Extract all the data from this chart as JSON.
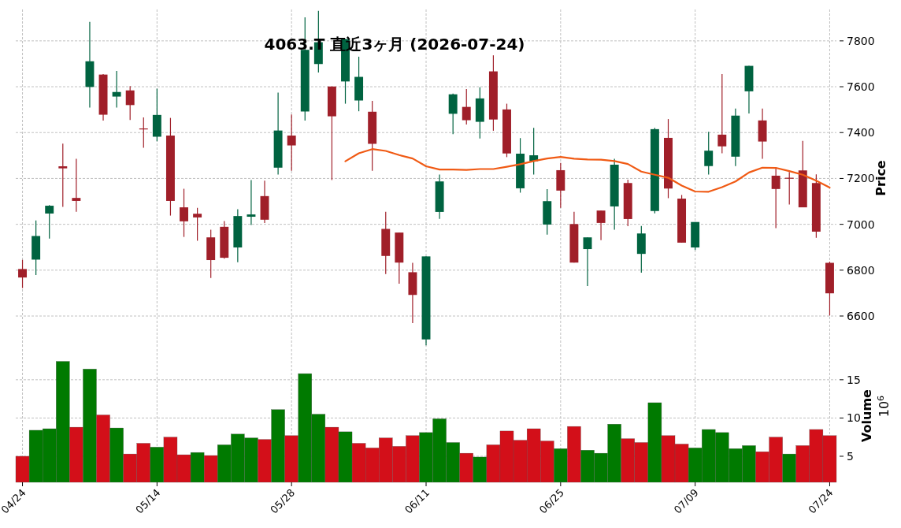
{
  "chart_data": [
    {
      "type": "candlestick",
      "title": "4063.T 直近3ヶ月 (2026-07-24)",
      "ylabel": "Price",
      "categories": [
        null,
        null,
        null,
        null,
        null,
        null,
        null,
        null,
        null,
        null,
        null,
        null,
        null,
        null,
        null,
        null,
        null,
        null,
        null,
        null,
        null,
        null,
        null,
        null,
        null,
        null,
        null,
        null,
        null,
        null,
        null,
        null,
        null,
        null,
        null,
        null,
        null,
        null,
        null,
        null,
        null,
        null,
        null,
        null,
        null,
        null,
        null,
        null,
        null,
        null,
        null,
        null,
        null,
        null,
        null,
        null,
        null,
        null,
        null,
        null,
        null
      ],
      "ohlc": [
        [
          6805,
          6845,
          6722,
          6768
        ],
        [
          6846,
          7017,
          6779,
          6949
        ],
        [
          7047,
          7084,
          6938,
          7081
        ],
        [
          7253,
          7352,
          7076,
          7244
        ],
        [
          7115,
          7286,
          7055,
          7102
        ],
        [
          7599,
          7883,
          7509,
          7711
        ],
        [
          7653,
          7655,
          7452,
          7478
        ],
        [
          7557,
          7669,
          7509,
          7577
        ],
        [
          7584,
          7603,
          7455,
          7520
        ],
        [
          7418,
          7466,
          7334,
          7416
        ],
        [
          7382,
          7592,
          7362,
          7477
        ],
        [
          7387,
          7464,
          7038,
          7102
        ],
        [
          7074,
          7155,
          6945,
          7013
        ],
        [
          7046,
          7072,
          6928,
          7030
        ],
        [
          6943,
          6976,
          6766,
          6844
        ],
        [
          6989,
          7014,
          6850,
          6854
        ],
        [
          6899,
          7066,
          6835,
          7036
        ],
        [
          7033,
          7193,
          6997,
          7043
        ],
        [
          7123,
          7190,
          7006,
          7020
        ],
        [
          7247,
          7574,
          7217,
          7409
        ],
        [
          7387,
          7479,
          7233,
          7344
        ],
        [
          7492,
          7903,
          7452,
          7761
        ],
        [
          7699,
          7931,
          7662,
          7794
        ],
        [
          7601,
          7601,
          7193,
          7471
        ],
        [
          7623,
          7808,
          7526,
          7808
        ],
        [
          7540,
          7731,
          7493,
          7643
        ],
        [
          7491,
          7538,
          7233,
          7351
        ],
        [
          6980,
          7055,
          6783,
          6862
        ],
        [
          6964,
          6964,
          6741,
          6833
        ],
        [
          6791,
          6832,
          6569,
          6692
        ],
        [
          6498,
          6860,
          6472,
          6860
        ],
        [
          7054,
          7217,
          7024,
          7187
        ],
        [
          7482,
          7570,
          7393,
          7567
        ],
        [
          7512,
          7590,
          7435,
          7454
        ],
        [
          7447,
          7598,
          7374,
          7549
        ],
        [
          7667,
          7737,
          7408,
          7457
        ],
        [
          7501,
          7526,
          7293,
          7309
        ],
        [
          7157,
          7376,
          7138,
          7308
        ],
        [
          7275,
          7421,
          7217,
          7301
        ],
        [
          6999,
          7153,
          6955,
          7101
        ],
        [
          7236,
          7268,
          7072,
          7147
        ],
        [
          7001,
          7055,
          6833,
          6833
        ],
        [
          6892,
          6943,
          6731,
          6943
        ],
        [
          7060,
          7060,
          6931,
          7006
        ],
        [
          7078,
          7286,
          6976,
          7260
        ],
        [
          7180,
          7195,
          6992,
          7023
        ],
        [
          6871,
          6993,
          6789,
          6960
        ],
        [
          7058,
          7421,
          7048,
          7415
        ],
        [
          7377,
          7459,
          7114,
          7156
        ],
        [
          7112,
          7128,
          6920,
          6920
        ],
        [
          6899,
          7010,
          6888,
          7010
        ],
        [
          7254,
          7403,
          7217,
          7321
        ],
        [
          7391,
          7655,
          7310,
          7340
        ],
        [
          7295,
          7505,
          7254,
          7474
        ],
        [
          7580,
          7691,
          7483,
          7691
        ],
        [
          7453,
          7505,
          7286,
          7361
        ],
        [
          7212,
          7245,
          6983,
          7154
        ],
        [
          7203,
          7228,
          7086,
          7201
        ],
        [
          7235,
          7364,
          7074,
          7074
        ],
        [
          7180,
          7218,
          6941,
          6968
        ],
        [
          6832,
          6837,
          6602,
          6699
        ]
      ],
      "colors": [
        "#a01f29",
        "#006340",
        "#006340",
        "#a01f29",
        "#a01f29",
        "#006340",
        "#a01f29",
        "#006340",
        "#a01f29",
        "#a01f29",
        "#006340",
        "#a01f29",
        "#a01f29",
        "#a01f29",
        "#a01f29",
        "#a01f29",
        "#006340",
        "#006340",
        "#a01f29",
        "#006340",
        "#a01f29",
        "#006340",
        "#006340",
        "#a01f29",
        "#006340",
        "#006340",
        "#a01f29",
        "#a01f29",
        "#a01f29",
        "#a01f29",
        "#006340",
        "#006340",
        "#006340",
        "#a01f29",
        "#006340",
        "#a01f29",
        "#a01f29",
        "#006340",
        "#006340",
        "#006340",
        "#a01f29",
        "#a01f29",
        "#006340",
        "#a01f29",
        "#006340",
        "#a01f29",
        "#006340",
        "#006340",
        "#a01f29",
        "#a01f29",
        "#006340",
        "#006340",
        "#a01f29",
        "#006340",
        "#006340",
        "#a01f29",
        "#a01f29",
        "#a01f29",
        "#a01f29",
        "#a01f29",
        "#a01f29"
      ],
      "series": [
        {
          "type": "line",
          "color": "#f05a14",
          "values": [
            null,
            null,
            null,
            null,
            null,
            null,
            null,
            null,
            null,
            null,
            null,
            null,
            null,
            null,
            null,
            null,
            null,
            null,
            null,
            null,
            null,
            null,
            null,
            null,
            7275,
            7310,
            7328,
            7320,
            7302,
            7287,
            7253,
            7239,
            7239,
            7237,
            7241,
            7241,
            7251,
            7262,
            7276,
            7287,
            7294,
            7286,
            7283,
            7282,
            7276,
            7263,
            7230,
            7216,
            7203,
            7169,
            7143,
            7142,
            7162,
            7187,
            7226,
            7247,
            7246,
            7232,
            7216,
            7190,
            7160
          ]
        }
      ],
      "ylim": [
        6466,
        7937
      ],
      "yticks": [
        6600,
        6800,
        7000,
        7200,
        7400,
        7600,
        7800
      ],
      "grid": true
    },
    {
      "type": "bar",
      "ylabel": "Volume",
      "annotations": [
        "10$^{6}$"
      ],
      "categories": [
        "04/24",
        null,
        null,
        null,
        null,
        null,
        null,
        null,
        null,
        null,
        "05/14",
        null,
        null,
        null,
        null,
        null,
        null,
        null,
        null,
        null,
        "05/28",
        null,
        null,
        null,
        null,
        null,
        null,
        null,
        null,
        null,
        "06/11",
        null,
        null,
        null,
        null,
        null,
        null,
        null,
        null,
        null,
        "06/25",
        null,
        null,
        null,
        null,
        null,
        null,
        null,
        null,
        null,
        "07/09",
        null,
        null,
        null,
        null,
        null,
        null,
        null,
        null,
        null,
        "07/24"
      ],
      "values": [
        5.0,
        8.4,
        8.6,
        17.4,
        8.8,
        16.4,
        10.4,
        8.7,
        5.3,
        6.7,
        6.2,
        7.5,
        5.2,
        5.5,
        5.1,
        6.5,
        7.9,
        7.4,
        7.2,
        11.1,
        7.7,
        15.8,
        10.5,
        8.8,
        8.2,
        6.7,
        6.1,
        7.4,
        6.3,
        7.7,
        8.1,
        9.9,
        6.8,
        5.4,
        4.9,
        6.5,
        8.3,
        7.1,
        8.6,
        7.0,
        6.0,
        8.9,
        5.8,
        5.4,
        9.2,
        7.3,
        6.8,
        12.0,
        7.7,
        6.6,
        6.1,
        8.5,
        8.1,
        6.0,
        6.4,
        5.6,
        7.5,
        5.3,
        6.4,
        8.5,
        7.7
      ],
      "colors": [
        "#d30f19",
        "#007a00",
        "#007a00",
        "#007a00",
        "#d30f19",
        "#007a00",
        "#d30f19",
        "#007a00",
        "#d30f19",
        "#d30f19",
        "#007a00",
        "#d30f19",
        "#d30f19",
        "#007a00",
        "#d30f19",
        "#007a00",
        "#007a00",
        "#007a00",
        "#d30f19",
        "#007a00",
        "#d30f19",
        "#007a00",
        "#007a00",
        "#d30f19",
        "#007a00",
        "#d30f19",
        "#d30f19",
        "#d30f19",
        "#d30f19",
        "#d30f19",
        "#007a00",
        "#007a00",
        "#007a00",
        "#d30f19",
        "#007a00",
        "#d30f19",
        "#d30f19",
        "#d30f19",
        "#d30f19",
        "#d30f19",
        "#007a00",
        "#d30f19",
        "#007a00",
        "#007a00",
        "#007a00",
        "#d30f19",
        "#d30f19",
        "#007a00",
        "#d30f19",
        "#d30f19",
        "#007a00",
        "#007a00",
        "#007a00",
        "#007a00",
        "#007a00",
        "#d30f19",
        "#d30f19",
        "#007a00",
        "#d30f19",
        "#d30f19",
        "#d30f19"
      ],
      "ylim": [
        1.6,
        19
      ],
      "yticks": [
        5,
        10,
        15
      ],
      "grid": true
    }
  ]
}
